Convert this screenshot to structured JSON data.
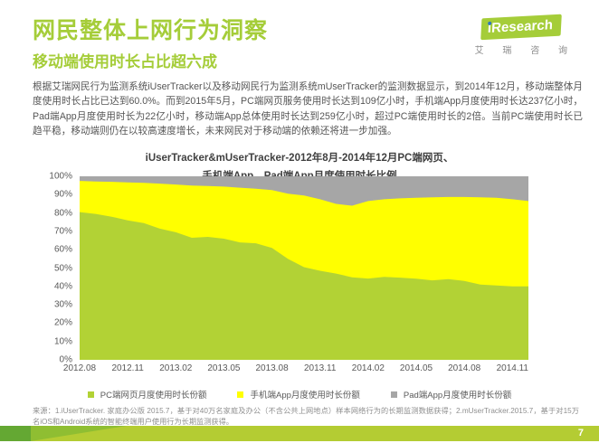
{
  "header": {
    "title": "网民整体上网行为洞察",
    "subtitle": "移动端使用时长占比超六成"
  },
  "logo": {
    "brand_prefix": "i",
    "brand": "Research",
    "chinese": "艾 瑞 咨 询"
  },
  "intro": {
    "text": "根据艾瑞网民行为监测系统iUserTracker以及移动网民行为监测系统mUserTracker的监测数据显示，到2014年12月，移动端整体月度使用时长占比已达到60.0%。而到2015年5月，PC端网页服务使用时长达到109亿小时，手机端App月度使用时长达237亿小时，Pad端App月度使用时长为22亿小时，移动端App总体使用时长达到259亿小时，超过PC端使用时长的2倍。当前PC端使用时长已趋平稳，移动端则仍在以较高速度增长，未来网民对于移动端的依赖还将进一步加强。"
  },
  "chart_data": {
    "type": "area",
    "stacked": true,
    "percent": true,
    "title_line1": "iUserTracker&mUserTracker-2012年8月-2014年12月PC端网页、",
    "title_line2": "手机端App、Pad端App月度使用时长比例",
    "x": [
      "2012.08",
      "2012.09",
      "2012.10",
      "2012.11",
      "2012.12",
      "2013.01",
      "2013.02",
      "2013.03",
      "2013.04",
      "2013.05",
      "2013.06",
      "2013.07",
      "2013.08",
      "2013.09",
      "2013.10",
      "2013.11",
      "2013.12",
      "2014.01",
      "2014.02",
      "2014.03",
      "2014.04",
      "2014.05",
      "2014.06",
      "2014.07",
      "2014.08",
      "2014.09",
      "2014.10",
      "2014.11",
      "2014.12"
    ],
    "x_tick_labels": [
      "2012.08",
      "2012.11",
      "2013.02",
      "2013.05",
      "2013.08",
      "2013.11",
      "2014.02",
      "2014.05",
      "2014.08",
      "2014.11"
    ],
    "y_tick_labels": [
      "0%",
      "10%",
      "20%",
      "30%",
      "40%",
      "50%",
      "60%",
      "70%",
      "80%",
      "90%",
      "100%"
    ],
    "ylim": [
      0,
      100
    ],
    "grid": false,
    "legend_position": "bottom",
    "series": [
      {
        "name": "PC端网页月度使用时长份额",
        "color": "#b2d235",
        "values": [
          80.5,
          79.5,
          78,
          76,
          74.5,
          71.5,
          69.5,
          66.5,
          67,
          66,
          64,
          63.5,
          61,
          55,
          50.5,
          48.5,
          47,
          45,
          44.3,
          45.2,
          44.8,
          44.2,
          43.3,
          44,
          43,
          41,
          40.5,
          40,
          40
        ]
      },
      {
        "name": "手机端App月度使用时长份额",
        "color": "#ffff00",
        "values": [
          17,
          17.7,
          19,
          20.7,
          21.9,
          24.5,
          26,
          28.5,
          27.7,
          28.4,
          29.8,
          29.7,
          31.5,
          35.5,
          39,
          39,
          38,
          39,
          42.2,
          42.3,
          43.2,
          44.1,
          45.2,
          44.7,
          45.7,
          47.5,
          47.8,
          47.5,
          46.5
        ]
      },
      {
        "name": "Pad端App月度使用时长份额",
        "color": "#a6a6a6",
        "values": [
          2.5,
          2.8,
          3,
          3.3,
          3.6,
          4,
          4.5,
          5,
          5.3,
          5.6,
          6.2,
          6.8,
          7.5,
          9.5,
          10.5,
          12.5,
          15,
          16,
          13.5,
          12.5,
          12,
          11.7,
          11.5,
          11.3,
          11.3,
          11.5,
          11.7,
          12.5,
          13.5
        ]
      }
    ]
  },
  "footer": {
    "source": "来源：1.iUserTracker. 家庭办公版 2015.7，基于对40万名家庭及办公（不含公共上网地点）样本网络行为的长期监测数据获得；2.mUserTracker.2015.7，基于对15万名iOS和Android系统的智能终端用户使用行为长期监测获得。",
    "page_number": "7"
  },
  "colors": {
    "accent_green": "#a5cd39",
    "pc_area": "#b2d235",
    "mobile_area": "#ffff00",
    "pad_area": "#a6a6a6",
    "bar_light": "#b4cc33",
    "bar_dark": "#64a833",
    "logo_dot_blue": "#2f77bd"
  }
}
